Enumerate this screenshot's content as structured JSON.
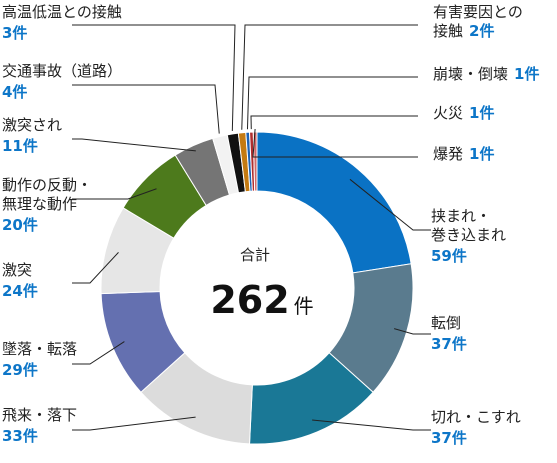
{
  "chart_data": {
    "type": "pie",
    "style": "donut",
    "center": {
      "label": "合計",
      "value": "262",
      "unit": "件"
    },
    "slices": [
      {
        "category": [
          "挟まれ・",
          "巻き込まれ"
        ],
        "value": 59,
        "count_label": "59件",
        "color": "#0a72c4"
      },
      {
        "category": [
          "転倒"
        ],
        "value": 37,
        "count_label": "37件",
        "color": "#5a7b8e"
      },
      {
        "category": [
          "切れ・こすれ"
        ],
        "value": 37,
        "count_label": "37件",
        "color": "#1a7896"
      },
      {
        "category": [
          "飛来・落下"
        ],
        "value": 33,
        "count_label": "33件",
        "color": "#dcdcdc"
      },
      {
        "category": [
          "墜落・転落"
        ],
        "value": 29,
        "count_label": "29件",
        "color": "#6470b0"
      },
      {
        "category": [
          "激突"
        ],
        "value": 24,
        "count_label": "24件",
        "color": "#e6e6e6"
      },
      {
        "category": [
          "動作の反動・",
          "無理な動作"
        ],
        "value": 20,
        "count_label": "20件",
        "color": "#4d7a1c"
      },
      {
        "category": [
          "激突され"
        ],
        "value": 11,
        "count_label": "11件",
        "color": "#757575"
      },
      {
        "category": [
          "交通事故（道路）"
        ],
        "value": 4,
        "count_label": "4件",
        "color": "#f2f2f2"
      },
      {
        "category": [
          "高温低温との接触"
        ],
        "value": 3,
        "count_label": "3件",
        "color": "#111111"
      },
      {
        "category": [
          "有害要因との",
          "接触"
        ],
        "value": 2,
        "count_label": "2件",
        "color": "#c47a12"
      },
      {
        "category": [
          "崩壊・倒壊"
        ],
        "value": 1,
        "count_label": "1件",
        "color": "#1d63b5"
      },
      {
        "category": [
          "火災"
        ],
        "value": 1,
        "count_label": "1件",
        "color": "#b12e2e"
      },
      {
        "category": [
          "爆発"
        ],
        "value": 1,
        "count_label": "1件",
        "color": "#d06a6a"
      }
    ]
  }
}
